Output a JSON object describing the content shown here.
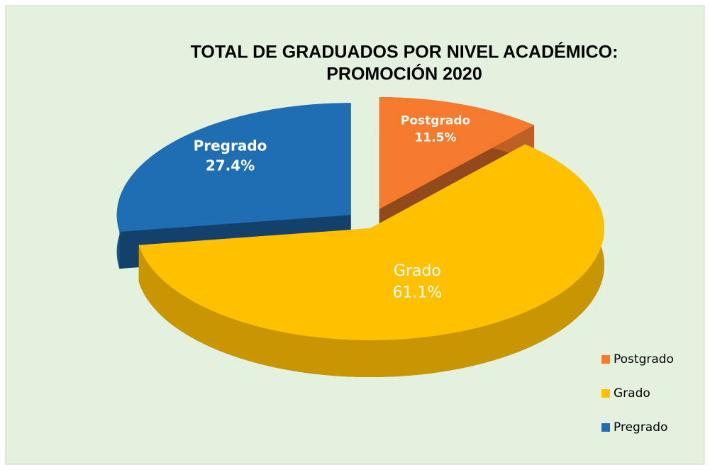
{
  "chart_data": {
    "type": "pie",
    "title": [
      "TOTAL DE GRADUADOS POR NIVEL ACADÉMICO:",
      "PROMOCIÓN 2020"
    ],
    "categories": [
      "Postgrado",
      "Grado",
      "Pregrado"
    ],
    "values": [
      11.5,
      61.1,
      27.4
    ],
    "value_labels": [
      "11.5%",
      "61.1%",
      "27.4%"
    ],
    "colors": [
      "#f47b2e",
      "#ffc000",
      "#1f6db3"
    ],
    "legend": "right"
  }
}
